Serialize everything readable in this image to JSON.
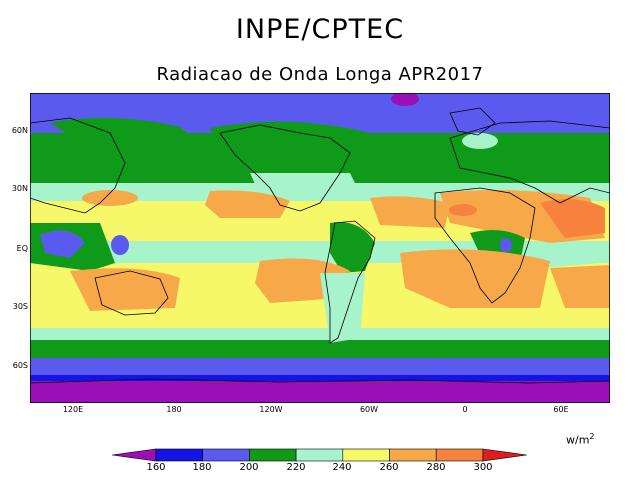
{
  "title": "INPE/CPTEC",
  "subtitle": "Radiacao de Onda Longa APR2017",
  "units": {
    "base": "w/m",
    "exp": "2"
  },
  "lat_labels": [
    "60N",
    "30N",
    "EQ",
    "30S",
    "60S"
  ],
  "lon_labels": [
    "120E",
    "180",
    "120W",
    "60W",
    "0",
    "60E"
  ],
  "colorbar": {
    "levels": [
      "160",
      "180",
      "200",
      "220",
      "240",
      "260",
      "280",
      "300"
    ],
    "colors": [
      "#9b0fb8",
      "#1414e6",
      "#5a5aef",
      "#0f9b19",
      "#a6f3cc",
      "#f7f76a",
      "#f7a94a",
      "#f6823e",
      "#dc1e1e"
    ]
  }
}
